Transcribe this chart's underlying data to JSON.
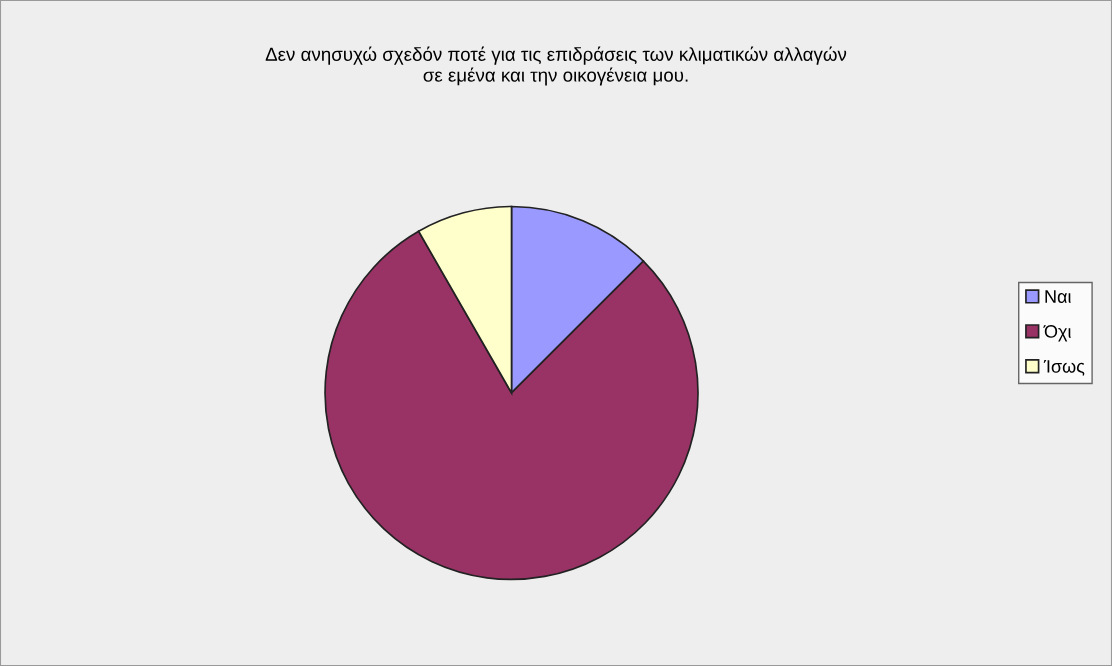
{
  "chart_data": {
    "type": "pie",
    "title": "Δεν ανησυχώ σχεδόν ποτέ για τις επιδράσεις των κλιματικών αλλαγών\nσε εμένα και την οικογένεια μου.",
    "categories": [
      "Ναι",
      "Όχι",
      "Ίσως"
    ],
    "values": [
      12.5,
      79.2,
      8.3
    ],
    "colors": [
      "#9999ff",
      "#993366",
      "#ffffcc"
    ],
    "legend": "right"
  }
}
